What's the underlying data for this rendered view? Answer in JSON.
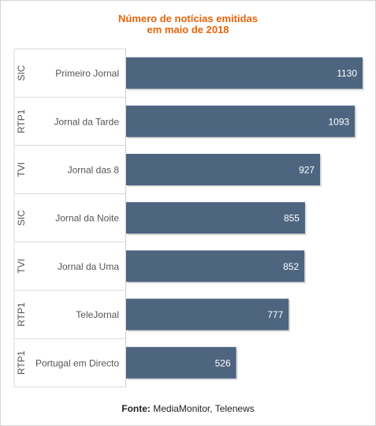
{
  "chart_data": {
    "type": "bar",
    "orientation": "horizontal",
    "title": [
      "Número de notícias emitidas",
      "em maio de 2018"
    ],
    "groups": [
      "SIC",
      "RTP1",
      "TVI",
      "SIC",
      "TVI",
      "RTP1",
      "RTP1"
    ],
    "categories": [
      "Primeiro Jornal",
      "Jornal da Tarde",
      "Jornal das 8",
      "Jornal da Noite",
      "Jornal da Uma",
      "TeleJornal",
      "Portugal em Directo"
    ],
    "values": [
      1130,
      1093,
      927,
      855,
      852,
      777,
      526
    ],
    "xlim": [
      0,
      1130
    ],
    "bar_color": "#4e6580",
    "title_color": "#e8630a",
    "data_labels": true,
    "grid": false,
    "legend": false
  },
  "source": {
    "label": "Fonte:",
    "text": "MediaMonitor, Telenews"
  }
}
